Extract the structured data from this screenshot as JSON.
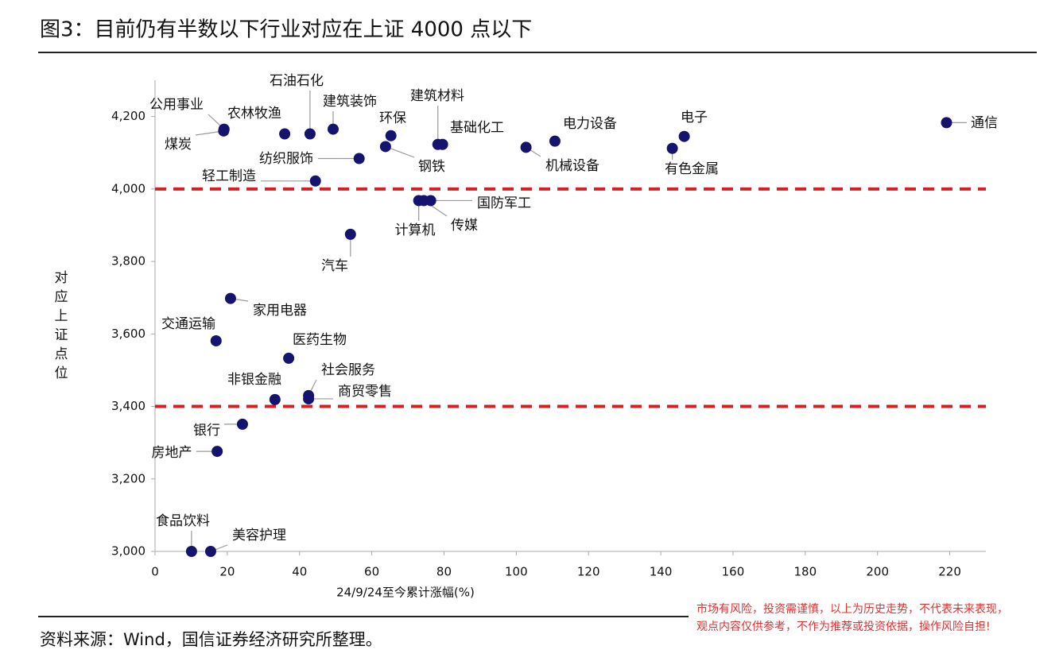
{
  "chart_data": {
    "type": "scatter",
    "title": "图3：目前仍有半数以下行业对应在上证 4000 点以下",
    "xlabel": "24/9/24至今累计涨幅(%)",
    "ylabel": "对应上证点位",
    "source": "资料来源：Wind，国信证券经济研究所整理。",
    "disclaimer": [
      "市场有风险，投资需谨慎，以上为历史走势，不代表未来表现，",
      "观点内容仅供参考，不作为推荐或投资依据，操作风险自担!"
    ],
    "color": "#14146e",
    "ref_line_color": "#d42020",
    "ref_lines": [
      4000,
      3400
    ],
    "xlim": [
      0,
      230
    ],
    "ylim": [
      3000,
      4300
    ],
    "xticks": [
      0,
      20,
      40,
      60,
      80,
      100,
      120,
      140,
      160,
      180,
      200,
      220
    ],
    "yticks": [
      {
        "value": 3000,
        "label": "3,000"
      },
      {
        "value": 3200,
        "label": "3,200"
      },
      {
        "value": 3400,
        "label": "3,400"
      },
      {
        "value": 3600,
        "label": "3,600"
      },
      {
        "value": 3800,
        "label": "3,800"
      },
      {
        "value": 4000,
        "label": "4,000"
      },
      {
        "value": 4200,
        "label": "4,200"
      }
    ],
    "labels": [
      "公用事业",
      "煤炭",
      "农林牧渔",
      "石油石化",
      "建筑装饰",
      "环保",
      "钢铁",
      "纺织服饰",
      "轻工制造",
      "建筑材料",
      "基础化工",
      "机械设备",
      "电力设备",
      "有色金属",
      "电子",
      "通信",
      "计算机",
      "传媒",
      "国防军工",
      "汽车",
      "家用电器",
      "交通运输",
      "医药生物",
      "非银金融",
      "社会服务",
      "商贸零售",
      "银行",
      "房地产",
      "食品饮料",
      "美容护理"
    ],
    "x": [
      19.1,
      19.0,
      35.9,
      42.9,
      49.3,
      65.3,
      63.8,
      56.5,
      44.4,
      78.3,
      79.6,
      102.7,
      110.7,
      143.2,
      146.5,
      219.1,
      73.0,
      74.4,
      76.3,
      54.1,
      20.9,
      16.9,
      37.0,
      33.2,
      42.5,
      42.5,
      24.2,
      17.2,
      10.1,
      15.4
    ],
    "values": [
      4165,
      4160,
      4152,
      4152,
      4165,
      4147,
      4117,
      4084,
      4022,
      4123,
      4123,
      4115,
      4132,
      4112,
      4145,
      4183,
      3968,
      3968,
      3968,
      3875,
      3698,
      3581,
      3533,
      3419,
      3430,
      3421,
      3351,
      3276,
      3000,
      3000
    ]
  }
}
